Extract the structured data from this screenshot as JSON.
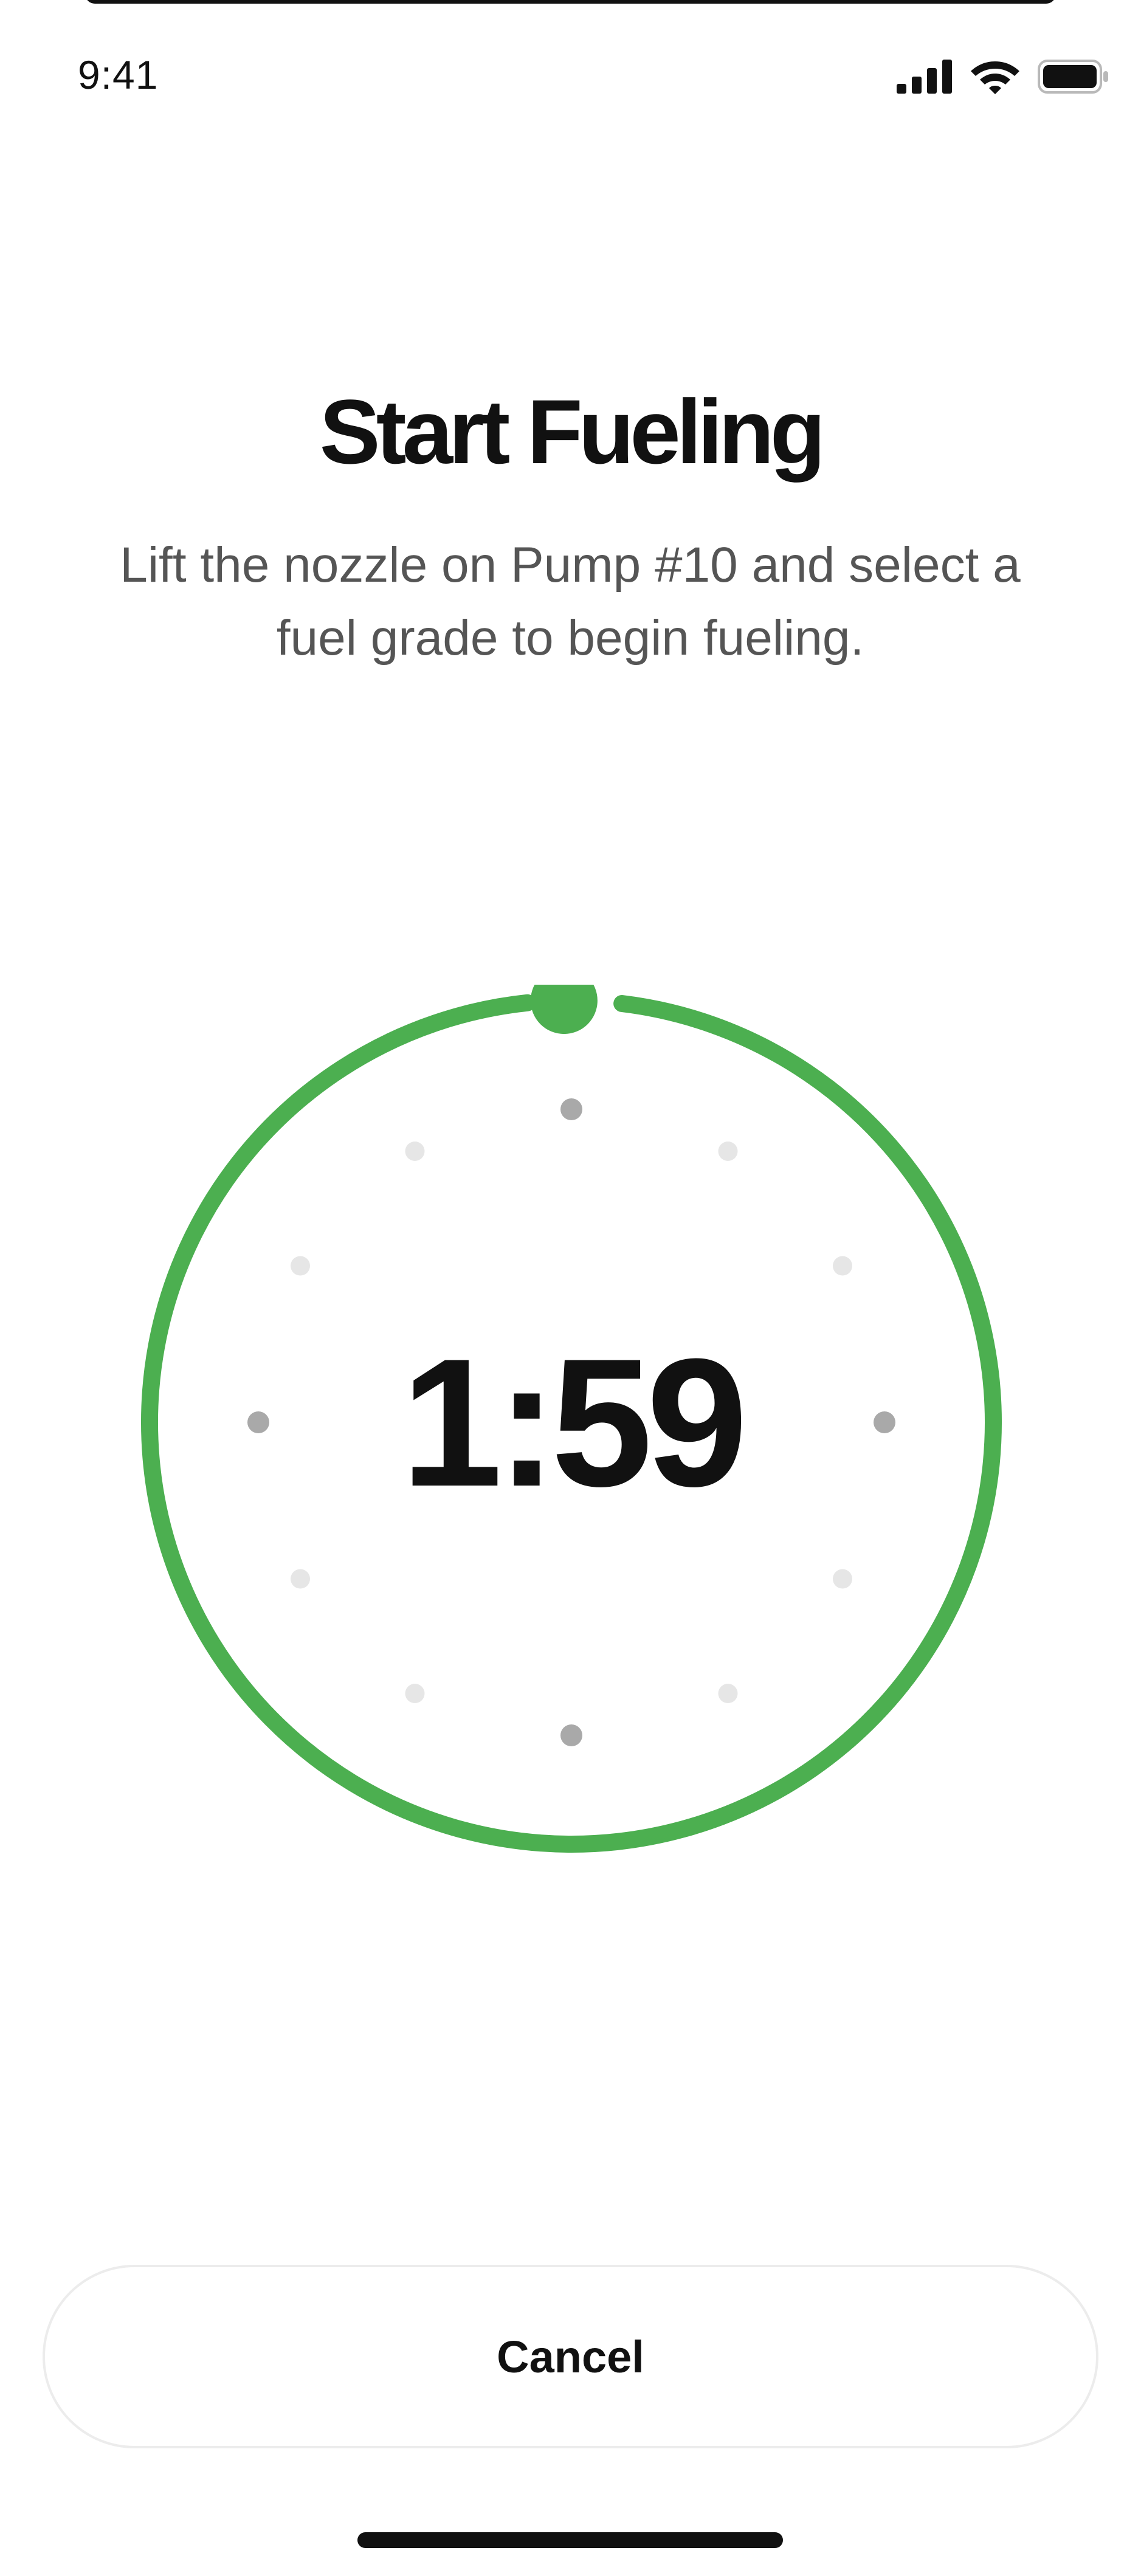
{
  "status_bar": {
    "time": "9:41",
    "icons": [
      "signal-icon",
      "wifi-icon",
      "battery-icon"
    ]
  },
  "header": {
    "title": "Start Fueling",
    "subtitle": "Lift the nozzle on Pump #10 and select a fuel grade to begin fueling."
  },
  "timer": {
    "value": "1:59",
    "remaining_fraction": 0.992,
    "ring_color": "#4caf50",
    "tick_count": 12
  },
  "actions": {
    "cancel_label": "Cancel"
  }
}
